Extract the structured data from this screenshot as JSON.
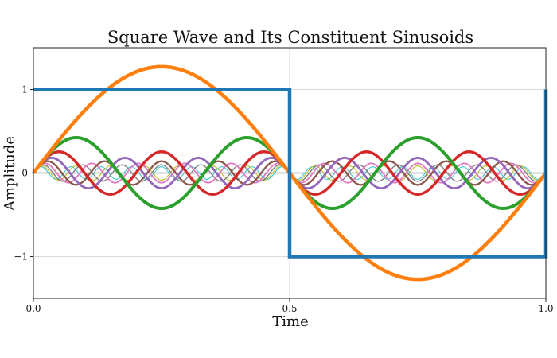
{
  "chart_data": {
    "type": "line",
    "title": "Square Wave and Its Constituent Sinusoids",
    "xlabel": "Time",
    "ylabel": "Amplitude",
    "xlim": [
      0.0,
      1.0
    ],
    "ylim": [
      -1.5,
      1.5
    ],
    "x_ticks": [
      {
        "value": 0.0,
        "label": "0.0"
      },
      {
        "value": 0.5,
        "label": "0.5"
      },
      {
        "value": 1.0,
        "label": "1.0"
      }
    ],
    "y_ticks": [
      {
        "value": -1,
        "label": "−1"
      },
      {
        "value": 0,
        "label": "0"
      },
      {
        "value": 1,
        "label": "1"
      }
    ],
    "grid": true,
    "legend": "none",
    "square_wave": {
      "points": [
        [
          0.0,
          1
        ],
        [
          0.5,
          1
        ],
        [
          0.5,
          -1
        ],
        [
          1.0,
          -1
        ],
        [
          1.0,
          1
        ]
      ],
      "color": "#1f77b4"
    },
    "series": [
      {
        "harmonic": 1,
        "amplitude": 1.273,
        "color": "#ff7f0e"
      },
      {
        "harmonic": 3,
        "amplitude": 0.424,
        "color": "#2ca02c"
      },
      {
        "harmonic": 5,
        "amplitude": 0.255,
        "color": "#d62728"
      },
      {
        "harmonic": 7,
        "amplitude": 0.182,
        "color": "#9467bd"
      },
      {
        "harmonic": 9,
        "amplitude": 0.141,
        "color": "#8c564b"
      },
      {
        "harmonic": 11,
        "amplitude": 0.116,
        "color": "#e377c2"
      },
      {
        "harmonic": 13,
        "amplitude": 0.098,
        "color": "#7f7f7f"
      },
      {
        "harmonic": 15,
        "amplitude": 0.085,
        "color": "#bcbd22"
      },
      {
        "harmonic": 17,
        "amplitude": 0.075,
        "color": "#17becf"
      }
    ]
  }
}
